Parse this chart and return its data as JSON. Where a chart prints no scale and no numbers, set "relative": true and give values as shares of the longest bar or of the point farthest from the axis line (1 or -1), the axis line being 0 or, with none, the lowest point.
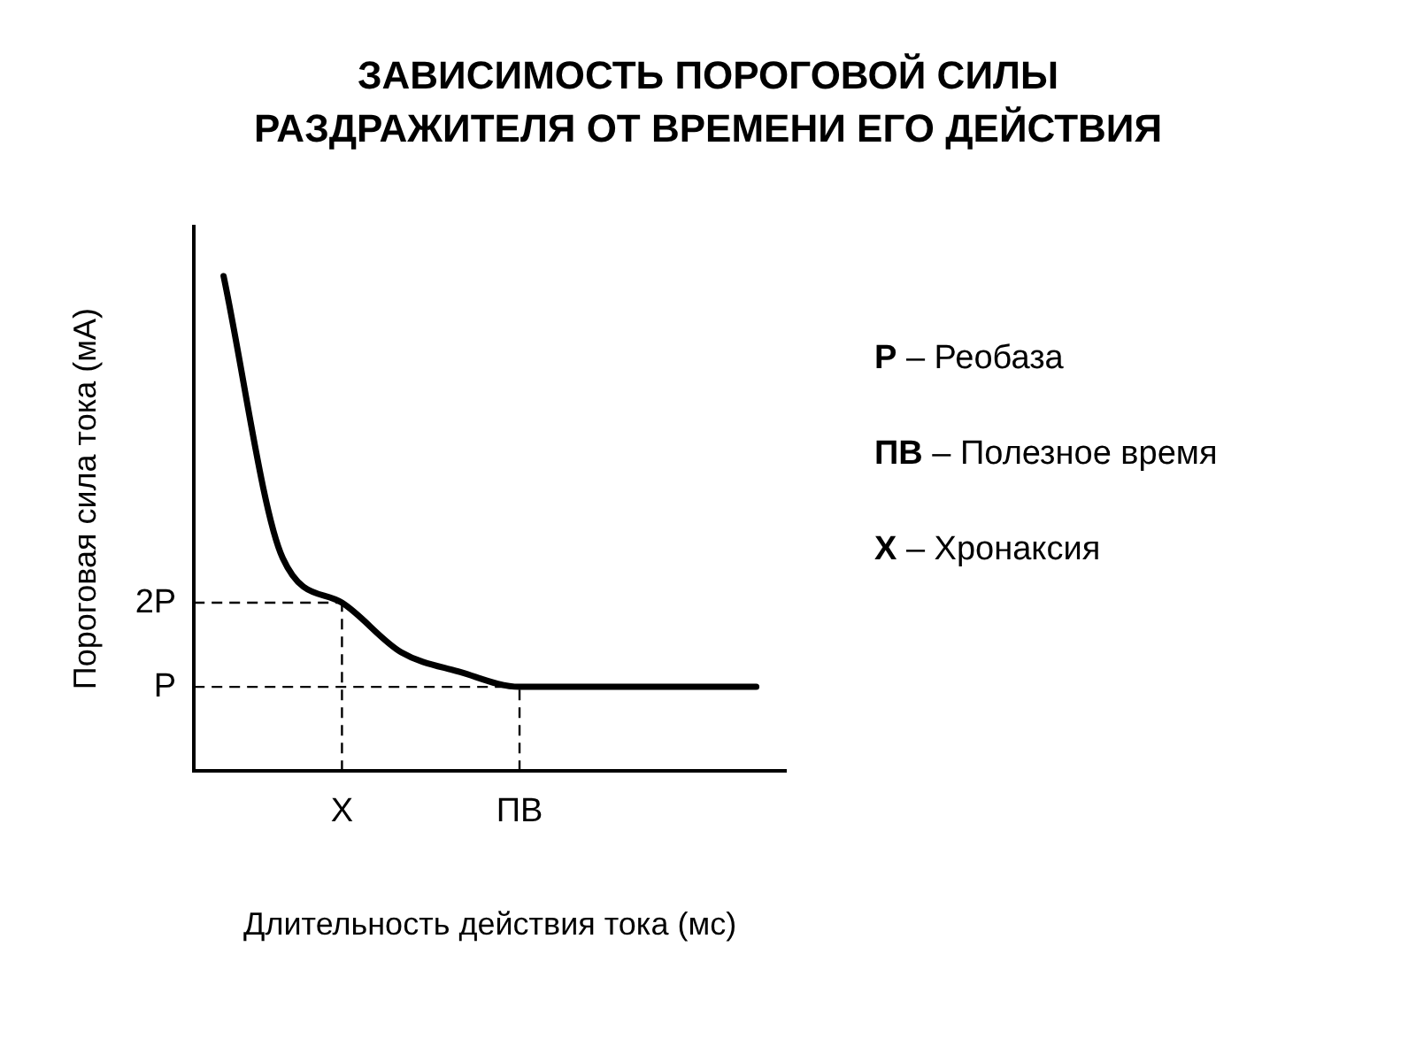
{
  "chart_data": {
    "type": "line",
    "title": "ЗАВИСИМОСТЬ ПОРОГОВОЙ СИЛЫ\nРАЗДРАЖИТЕЛЯ ОТ ВРЕМЕНИ ЕГО ДЕЙСТВИЯ",
    "xlabel": "Длительность действия тока (мс)",
    "ylabel": "Пороговая сила тока (мА)",
    "relative": true,
    "categories": [
      null,
      null,
      "X",
      null,
      null,
      "ПВ",
      null,
      null,
      null,
      null
    ],
    "series": [
      {
        "color": "#000000",
        "values": [
          1.0,
          0.43,
          0.34,
          0.24,
          0.2,
          0.17,
          0.17,
          0.17,
          0.17,
          0.17
        ]
      }
    ],
    "ref_lines": [
      {
        "axis": "y",
        "value": 0.34,
        "label": "2P",
        "line_style": "dashed",
        "color": "#000000"
      },
      {
        "axis": "y",
        "value": 0.17,
        "label": "P",
        "line_style": "dashed",
        "color": "#000000"
      },
      {
        "axis": "x",
        "value": "X",
        "line_style": "dashed",
        "color": "#000000"
      },
      {
        "axis": "x",
        "value": "ПВ",
        "line_style": "dashed",
        "color": "#000000"
      }
    ],
    "annotations": [
      "P – Реобаза",
      "ПВ – Полезное время",
      "X – Хронаксия"
    ]
  }
}
